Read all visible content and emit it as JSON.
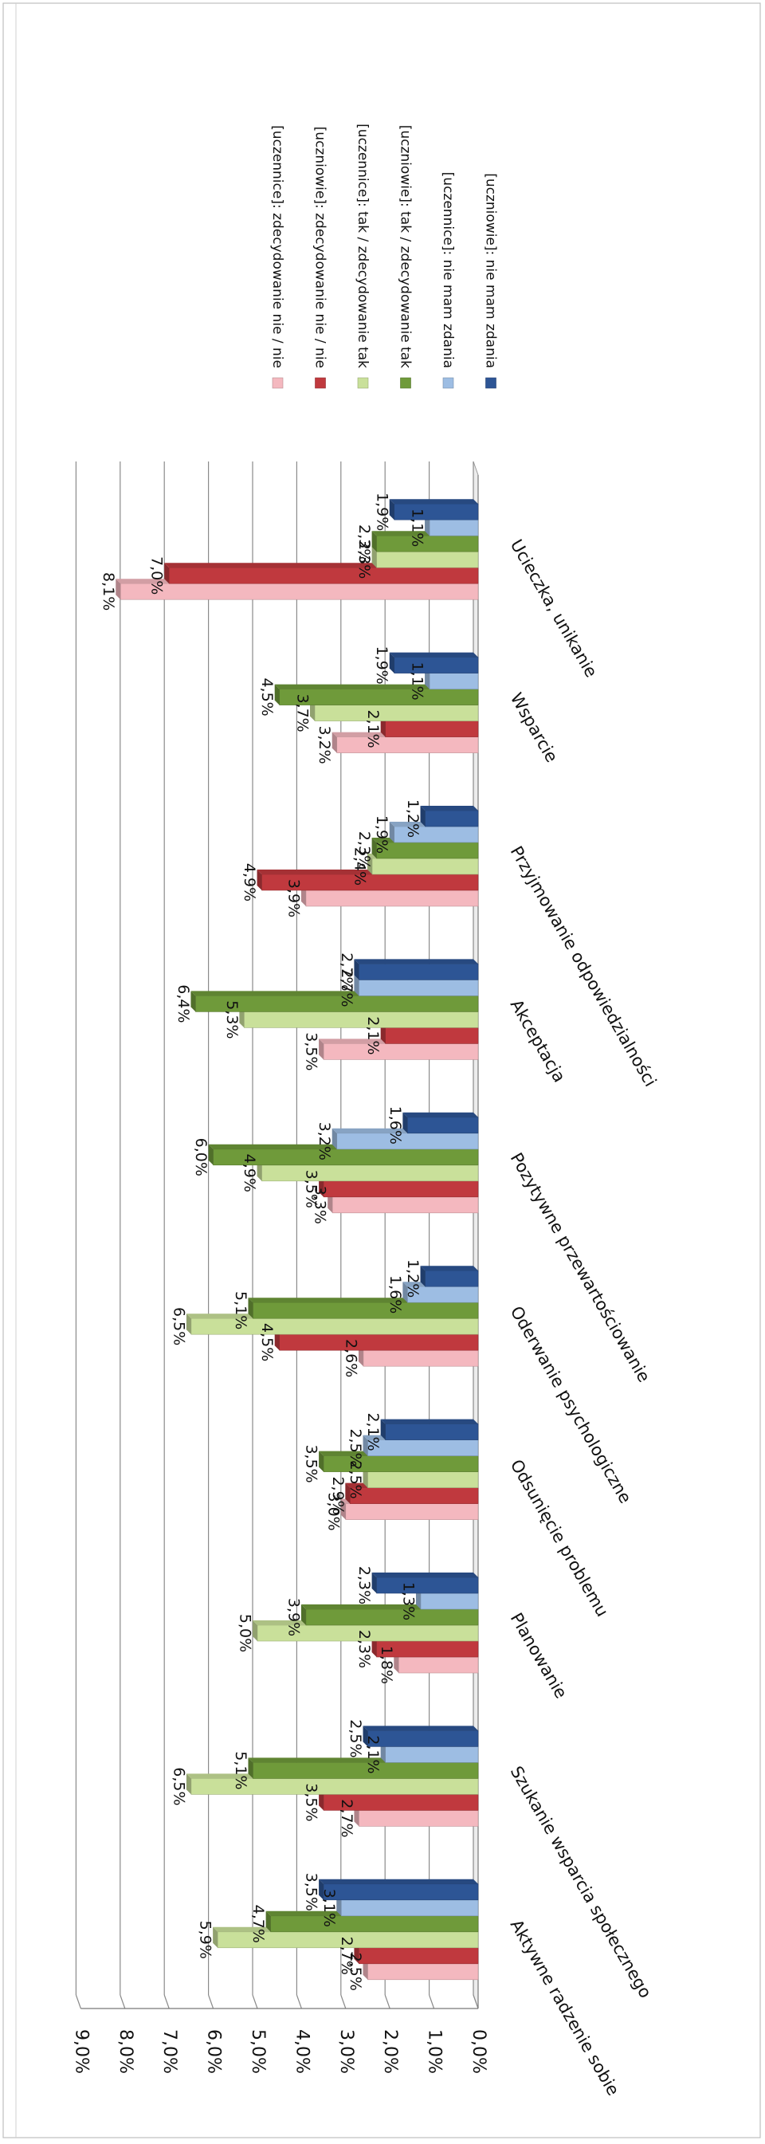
{
  "chart_data": {
    "type": "bar",
    "orientation": "rotated 90 degrees clockwise (3D clustered column)",
    "title": "",
    "xlabel": "",
    "ylabel": "",
    "ylim": [
      0,
      9
    ],
    "yticks": [
      "0,0%",
      "1,0%",
      "2,0%",
      "3,0%",
      "4,0%",
      "5,0%",
      "6,0%",
      "7,0%",
      "8,0%",
      "9,0%"
    ],
    "grid": true,
    "legend_position": "right",
    "categories": [
      "Aktywne radzenie sobie",
      "Szukanie wsparcia społecznego",
      "Planowanie",
      "Odsunięcie problemu",
      "Oderwanie psychologiczne",
      "Pozytywne przewartościowanie",
      "Akceptacja",
      "Przyjmowanie odpowiedzialności",
      "Wsparcie",
      "Ucieczka, unikanie"
    ],
    "series": [
      {
        "name": "[uczennice]: zdecydowanie nie / nie",
        "color": "#f4b8bf",
        "values": [
          2.5,
          2.7,
          1.8,
          3.0,
          2.6,
          3.3,
          3.5,
          3.9,
          3.2,
          8.1
        ],
        "labels": [
          "2,5%",
          "2,7%",
          "1,8%",
          "3,0%",
          "2,6%",
          "3,3%",
          "3,5%",
          "3,9%",
          "3,2%",
          "8,1%"
        ]
      },
      {
        "name": "[uczniowie]: zdecydowanie nie / nie",
        "color": "#c0393e",
        "values": [
          2.7,
          3.5,
          2.3,
          2.9,
          4.5,
          3.5,
          2.1,
          4.9,
          2.1,
          7.0
        ],
        "labels": [
          "2,7%",
          "3,5%",
          "2,3%",
          "2,9%",
          "4,5%",
          "3,5%",
          "2,1%",
          "4,9%",
          "2,1%",
          "7,0%"
        ]
      },
      {
        "name": "[uczennice]: tak / zdecydowanie tak",
        "color": "#c9e09a",
        "values": [
          5.9,
          6.5,
          5.0,
          2.5,
          6.5,
          4.9,
          5.3,
          2.4,
          3.7,
          2.3
        ],
        "labels": [
          "5,9%",
          "6,5%",
          "5,0%",
          "2,5%",
          "6,5%",
          "4,9%",
          "5,3%",
          "2,4%",
          "3,7%",
          "2,3%"
        ]
      },
      {
        "name": "[uczniowie]: tak / zdecydowanie tak",
        "color": "#6f9a3a",
        "values": [
          4.7,
          5.1,
          3.9,
          3.5,
          5.1,
          6.0,
          6.4,
          2.3,
          4.5,
          2.3
        ],
        "labels": [
          "4,7%",
          "5,1%",
          "3,9%",
          "3,5%",
          "5,1%",
          "6,0%",
          "6,4%",
          "2,3%",
          "4,5%",
          "2,3%"
        ]
      },
      {
        "name": "[uczennice]: nie mam zdania",
        "color": "#9dbde3",
        "values": [
          3.1,
          2.1,
          1.3,
          2.5,
          1.6,
          3.2,
          2.7,
          1.9,
          1.1,
          1.1
        ],
        "labels": [
          "3,1%",
          "2,1%",
          "1,3%",
          "2,5%",
          "1,6%",
          "3,2%",
          "2,7%",
          "1,9%",
          "1,1%",
          "1,1%"
        ]
      },
      {
        "name": "[uczniowie]: nie mam zdania",
        "color": "#2d5595",
        "values": [
          3.5,
          2.5,
          2.3,
          2.1,
          1.2,
          1.6,
          2.7,
          1.2,
          1.9,
          1.9
        ],
        "labels": [
          "3,5%",
          "2,5%",
          "2,3%",
          "2,1%",
          "1,2%",
          "1,6%",
          "2,7%",
          "1,2%",
          "1,9%",
          "1,9%"
        ]
      }
    ]
  }
}
